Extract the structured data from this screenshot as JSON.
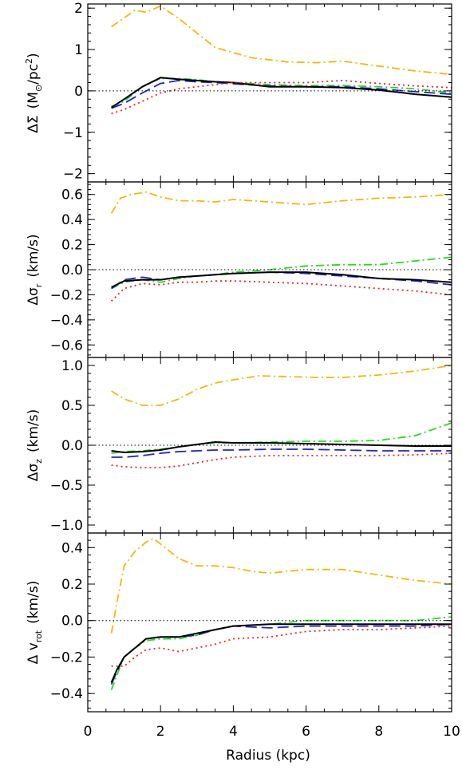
{
  "figure": {
    "xlabel": "Radius (kpc)",
    "xticks": [
      "0",
      "2",
      "4",
      "6",
      "8",
      "10"
    ],
    "xlim": [
      0,
      10
    ]
  },
  "chart_data": [
    {
      "type": "line",
      "panel_id": "sigma",
      "ylabel_main": "ΔΣ",
      "ylabel_unit": "(M",
      "ylabel_sub": "⊙",
      "ylabel_unit2": "/pc",
      "ylabel_sup": "2",
      "ylabel_end": ")",
      "ylim": [
        -2.2,
        2.1
      ],
      "yticks": [
        {
          "v": -2,
          "t": "−2"
        },
        {
          "v": -1,
          "t": "−1"
        },
        {
          "v": 0,
          "t": "0"
        },
        {
          "v": 1,
          "t": "1"
        },
        {
          "v": 2,
          "t": "2"
        }
      ],
      "series": [
        {
          "color": "#f5b800",
          "dash": "dashdot",
          "x": [
            0.65,
            0.9,
            1.3,
            1.6,
            2.0,
            2.5,
            3.0,
            3.5,
            4.5,
            5.5,
            6.3,
            7.0,
            8.0,
            9.0,
            10.0
          ],
          "y": [
            1.55,
            1.7,
            1.95,
            1.9,
            2.05,
            1.75,
            1.4,
            1.05,
            0.8,
            0.7,
            0.68,
            0.72,
            0.6,
            0.48,
            0.4
          ]
        },
        {
          "color": "#22dd22",
          "dash": "dashdot",
          "x": [
            0.65,
            1.0,
            1.5,
            2.0,
            2.5,
            3.0,
            3.5,
            4.0,
            5.0,
            6.0,
            7.0,
            8.0,
            9.0,
            10.0
          ],
          "y": [
            -0.38,
            -0.25,
            0.1,
            0.3,
            0.3,
            0.27,
            0.22,
            0.2,
            0.15,
            0.13,
            0.13,
            0.1,
            0.05,
            -0.05
          ]
        },
        {
          "color": "#2222cc",
          "dash": "longdash",
          "x": [
            0.65,
            1.0,
            1.5,
            2.0,
            2.5,
            3.0,
            3.5,
            4.0,
            5.0,
            6.0,
            7.0,
            8.0,
            9.0,
            10.0
          ],
          "y": [
            -0.42,
            -0.3,
            -0.05,
            0.18,
            0.25,
            0.22,
            0.2,
            0.17,
            0.12,
            0.1,
            0.1,
            0.05,
            -0.02,
            -0.08
          ]
        },
        {
          "color": "#000000",
          "dash": "solid",
          "x": [
            0.65,
            1.0,
            1.5,
            2.0,
            2.5,
            3.0,
            3.5,
            4.0,
            5.0,
            6.0,
            7.0,
            8.0,
            9.0,
            10.0
          ],
          "y": [
            -0.4,
            -0.2,
            0.1,
            0.32,
            0.28,
            0.25,
            0.22,
            0.2,
            0.1,
            0.1,
            0.08,
            0.02,
            -0.08,
            -0.15
          ]
        },
        {
          "color": "#ee2222",
          "dash": "dotted",
          "x": [
            0.65,
            1.0,
            1.5,
            2.0,
            2.5,
            3.0,
            3.5,
            4.0,
            5.0,
            6.0,
            7.0,
            8.0,
            9.0,
            10.0
          ],
          "y": [
            -0.55,
            -0.45,
            -0.25,
            -0.05,
            0.05,
            0.1,
            0.15,
            0.2,
            0.2,
            0.2,
            0.25,
            0.18,
            0.12,
            0.08
          ]
        }
      ]
    },
    {
      "type": "line",
      "panel_id": "sigr",
      "ylabel_main": "Δσ",
      "ylabel_sub": "r",
      "ylabel_unit": "(km/s)",
      "ylim": [
        -0.7,
        0.7
      ],
      "yticks": [
        {
          "v": -0.6,
          "t": "−0.6"
        },
        {
          "v": -0.4,
          "t": "−0.4"
        },
        {
          "v": -0.2,
          "t": "−0.2"
        },
        {
          "v": 0,
          "t": "0.0"
        },
        {
          "v": 0.2,
          "t": "0.2"
        },
        {
          "v": 0.4,
          "t": "0.4"
        },
        {
          "v": 0.6,
          "t": "0.6"
        }
      ],
      "series": [
        {
          "color": "#f5b800",
          "dash": "dashdot",
          "x": [
            0.65,
            0.9,
            1.2,
            1.6,
            2.0,
            2.5,
            3.0,
            3.5,
            4.0,
            5.0,
            6.0,
            7.0,
            8.0,
            9.0,
            10.0
          ],
          "y": [
            0.45,
            0.57,
            0.6,
            0.62,
            0.58,
            0.55,
            0.55,
            0.54,
            0.56,
            0.54,
            0.52,
            0.55,
            0.57,
            0.58,
            0.6
          ]
        },
        {
          "color": "#22dd22",
          "dash": "dashdot",
          "x": [
            0.65,
            1.0,
            1.5,
            2.0,
            2.5,
            3.0,
            3.5,
            4.0,
            5.0,
            6.0,
            7.0,
            8.0,
            9.0,
            10.0
          ],
          "y": [
            -0.15,
            -0.1,
            -0.08,
            -0.1,
            -0.07,
            -0.05,
            -0.04,
            -0.02,
            0.0,
            0.03,
            0.04,
            0.04,
            0.07,
            0.1
          ]
        },
        {
          "color": "#2222cc",
          "dash": "longdash",
          "x": [
            0.65,
            1.0,
            1.5,
            2.0,
            2.5,
            3.0,
            3.5,
            4.0,
            5.0,
            6.0,
            7.0,
            8.0,
            9.0,
            10.0
          ],
          "y": [
            -0.15,
            -0.08,
            -0.06,
            -0.08,
            -0.06,
            -0.05,
            -0.04,
            -0.03,
            -0.02,
            -0.03,
            -0.05,
            -0.07,
            -0.09,
            -0.12
          ]
        },
        {
          "color": "#000000",
          "dash": "solid",
          "x": [
            0.65,
            1.0,
            1.5,
            2.0,
            2.5,
            3.0,
            3.5,
            4.0,
            5.0,
            6.0,
            7.0,
            8.0,
            9.0,
            10.0
          ],
          "y": [
            -0.14,
            -0.09,
            -0.08,
            -0.08,
            -0.06,
            -0.05,
            -0.04,
            -0.03,
            -0.02,
            -0.02,
            -0.04,
            -0.07,
            -0.08,
            -0.1
          ]
        },
        {
          "color": "#ee2222",
          "dash": "dotted",
          "x": [
            0.65,
            1.0,
            1.5,
            2.0,
            2.5,
            3.0,
            3.5,
            4.0,
            5.0,
            6.0,
            7.0,
            8.0,
            9.0,
            10.0
          ],
          "y": [
            -0.25,
            -0.15,
            -0.11,
            -0.12,
            -0.1,
            -0.1,
            -0.09,
            -0.09,
            -0.1,
            -0.11,
            -0.13,
            -0.15,
            -0.17,
            -0.2
          ]
        }
      ]
    },
    {
      "type": "line",
      "panel_id": "sigz",
      "ylabel_main": "Δσ",
      "ylabel_sub": "z",
      "ylabel_unit": "(km/s)",
      "ylim": [
        -1.1,
        1.1
      ],
      "yticks": [
        {
          "v": -1,
          "t": "−1.0"
        },
        {
          "v": -0.5,
          "t": "−0.5"
        },
        {
          "v": 0,
          "t": "0.0"
        },
        {
          "v": 0.5,
          "t": "0.5"
        },
        {
          "v": 1,
          "t": "1.0"
        }
      ],
      "series": [
        {
          "color": "#f5b800",
          "dash": "dashdot",
          "x": [
            0.65,
            1.0,
            1.5,
            2.0,
            2.5,
            3.0,
            3.5,
            4.0,
            4.7,
            5.5,
            6.3,
            7.0,
            8.0,
            9.0,
            10.0
          ],
          "y": [
            0.68,
            0.58,
            0.5,
            0.5,
            0.58,
            0.7,
            0.78,
            0.82,
            0.87,
            0.86,
            0.85,
            0.85,
            0.88,
            0.93,
            1.0
          ]
        },
        {
          "color": "#22dd22",
          "dash": "dashdot",
          "x": [
            0.65,
            1.0,
            1.5,
            2.0,
            2.5,
            3.0,
            3.5,
            4.0,
            5.0,
            6.0,
            7.0,
            8.0,
            9.0,
            10.0
          ],
          "y": [
            -0.1,
            -0.08,
            -0.07,
            -0.05,
            -0.02,
            0.01,
            0.03,
            0.03,
            0.04,
            0.05,
            0.05,
            0.06,
            0.12,
            0.28
          ]
        },
        {
          "color": "#2222cc",
          "dash": "longdash",
          "x": [
            0.65,
            1.0,
            1.5,
            2.0,
            2.5,
            3.0,
            3.5,
            4.0,
            5.0,
            6.0,
            7.0,
            8.0,
            9.0,
            10.0
          ],
          "y": [
            -0.15,
            -0.15,
            -0.13,
            -0.1,
            -0.08,
            -0.07,
            -0.06,
            -0.06,
            -0.05,
            -0.05,
            -0.06,
            -0.07,
            -0.07,
            -0.07
          ]
        },
        {
          "color": "#000000",
          "dash": "solid",
          "x": [
            0.65,
            1.0,
            1.5,
            2.0,
            2.5,
            3.0,
            3.5,
            4.0,
            5.0,
            6.0,
            7.0,
            8.0,
            9.0,
            10.0
          ],
          "y": [
            -0.07,
            -0.09,
            -0.08,
            -0.06,
            -0.02,
            0.01,
            0.04,
            0.03,
            0.03,
            0.02,
            0.01,
            0.0,
            -0.01,
            -0.01
          ]
        },
        {
          "color": "#ee2222",
          "dash": "dotted",
          "x": [
            0.65,
            1.0,
            1.5,
            2.0,
            2.5,
            3.0,
            3.5,
            4.0,
            5.0,
            6.0,
            7.0,
            8.0,
            9.0,
            10.0
          ],
          "y": [
            -0.25,
            -0.27,
            -0.28,
            -0.28,
            -0.26,
            -0.22,
            -0.18,
            -0.15,
            -0.13,
            -0.13,
            -0.13,
            -0.13,
            -0.12,
            -0.1
          ]
        }
      ]
    },
    {
      "type": "line",
      "panel_id": "vrot",
      "ylabel_main": "Δ v",
      "ylabel_sub": "rot",
      "ylabel_unit": "(km/s)",
      "ylim": [
        -0.5,
        0.48
      ],
      "yticks": [
        {
          "v": -0.4,
          "t": "−0.4"
        },
        {
          "v": -0.2,
          "t": "−0.2"
        },
        {
          "v": 0,
          "t": "0.0"
        },
        {
          "v": 0.2,
          "t": "0.2"
        },
        {
          "v": 0.4,
          "t": "0.4"
        }
      ],
      "series": [
        {
          "color": "#f5b800",
          "dash": "dashdot",
          "x": [
            0.65,
            0.8,
            1.0,
            1.3,
            1.6,
            1.8,
            2.0,
            2.5,
            3.0,
            3.5,
            4.0,
            4.5,
            5.0,
            6.0,
            7.0,
            8.0,
            9.0,
            10.0
          ],
          "y": [
            -0.07,
            0.1,
            0.3,
            0.38,
            0.43,
            0.45,
            0.42,
            0.34,
            0.3,
            0.3,
            0.29,
            0.27,
            0.26,
            0.28,
            0.28,
            0.25,
            0.22,
            0.2
          ]
        },
        {
          "color": "#22dd22",
          "dash": "dashdot",
          "x": [
            0.65,
            0.8,
            1.0,
            1.3,
            1.6,
            2.0,
            2.5,
            3.0,
            3.5,
            4.0,
            5.0,
            6.0,
            7.0,
            8.0,
            9.0,
            10.0
          ],
          "y": [
            -0.38,
            -0.3,
            -0.2,
            -0.15,
            -0.11,
            -0.1,
            -0.1,
            -0.08,
            -0.05,
            -0.03,
            -0.02,
            0.0,
            0.0,
            0.0,
            0.0,
            0.02
          ]
        },
        {
          "color": "#2222cc",
          "dash": "longdash",
          "x": [
            0.65,
            0.8,
            1.0,
            1.3,
            1.6,
            2.0,
            2.5,
            3.0,
            3.5,
            4.0,
            5.0,
            6.0,
            7.0,
            8.0,
            9.0,
            10.0
          ],
          "y": [
            -0.35,
            -0.28,
            -0.2,
            -0.15,
            -0.1,
            -0.09,
            -0.09,
            -0.08,
            -0.05,
            -0.03,
            -0.04,
            -0.03,
            -0.03,
            -0.03,
            -0.03,
            -0.02
          ]
        },
        {
          "color": "#000000",
          "dash": "solid",
          "x": [
            0.65,
            0.8,
            1.0,
            1.3,
            1.6,
            2.0,
            2.5,
            3.0,
            3.5,
            4.0,
            5.0,
            6.0,
            7.0,
            8.0,
            9.0,
            10.0
          ],
          "y": [
            -0.34,
            -0.27,
            -0.2,
            -0.15,
            -0.1,
            -0.09,
            -0.09,
            -0.07,
            -0.05,
            -0.03,
            -0.02,
            -0.02,
            -0.02,
            -0.02,
            -0.02,
            -0.02
          ]
        },
        {
          "color": "#ee2222",
          "dash": "dotted",
          "x": [
            0.65,
            1.0,
            1.3,
            1.6,
            2.0,
            2.5,
            3.0,
            3.5,
            4.0,
            5.0,
            6.0,
            7.0,
            8.0,
            9.0,
            10.0
          ],
          "y": [
            -0.25,
            -0.25,
            -0.2,
            -0.16,
            -0.15,
            -0.17,
            -0.15,
            -0.13,
            -0.1,
            -0.09,
            -0.06,
            -0.05,
            -0.05,
            -0.04,
            -0.03
          ]
        }
      ]
    }
  ]
}
